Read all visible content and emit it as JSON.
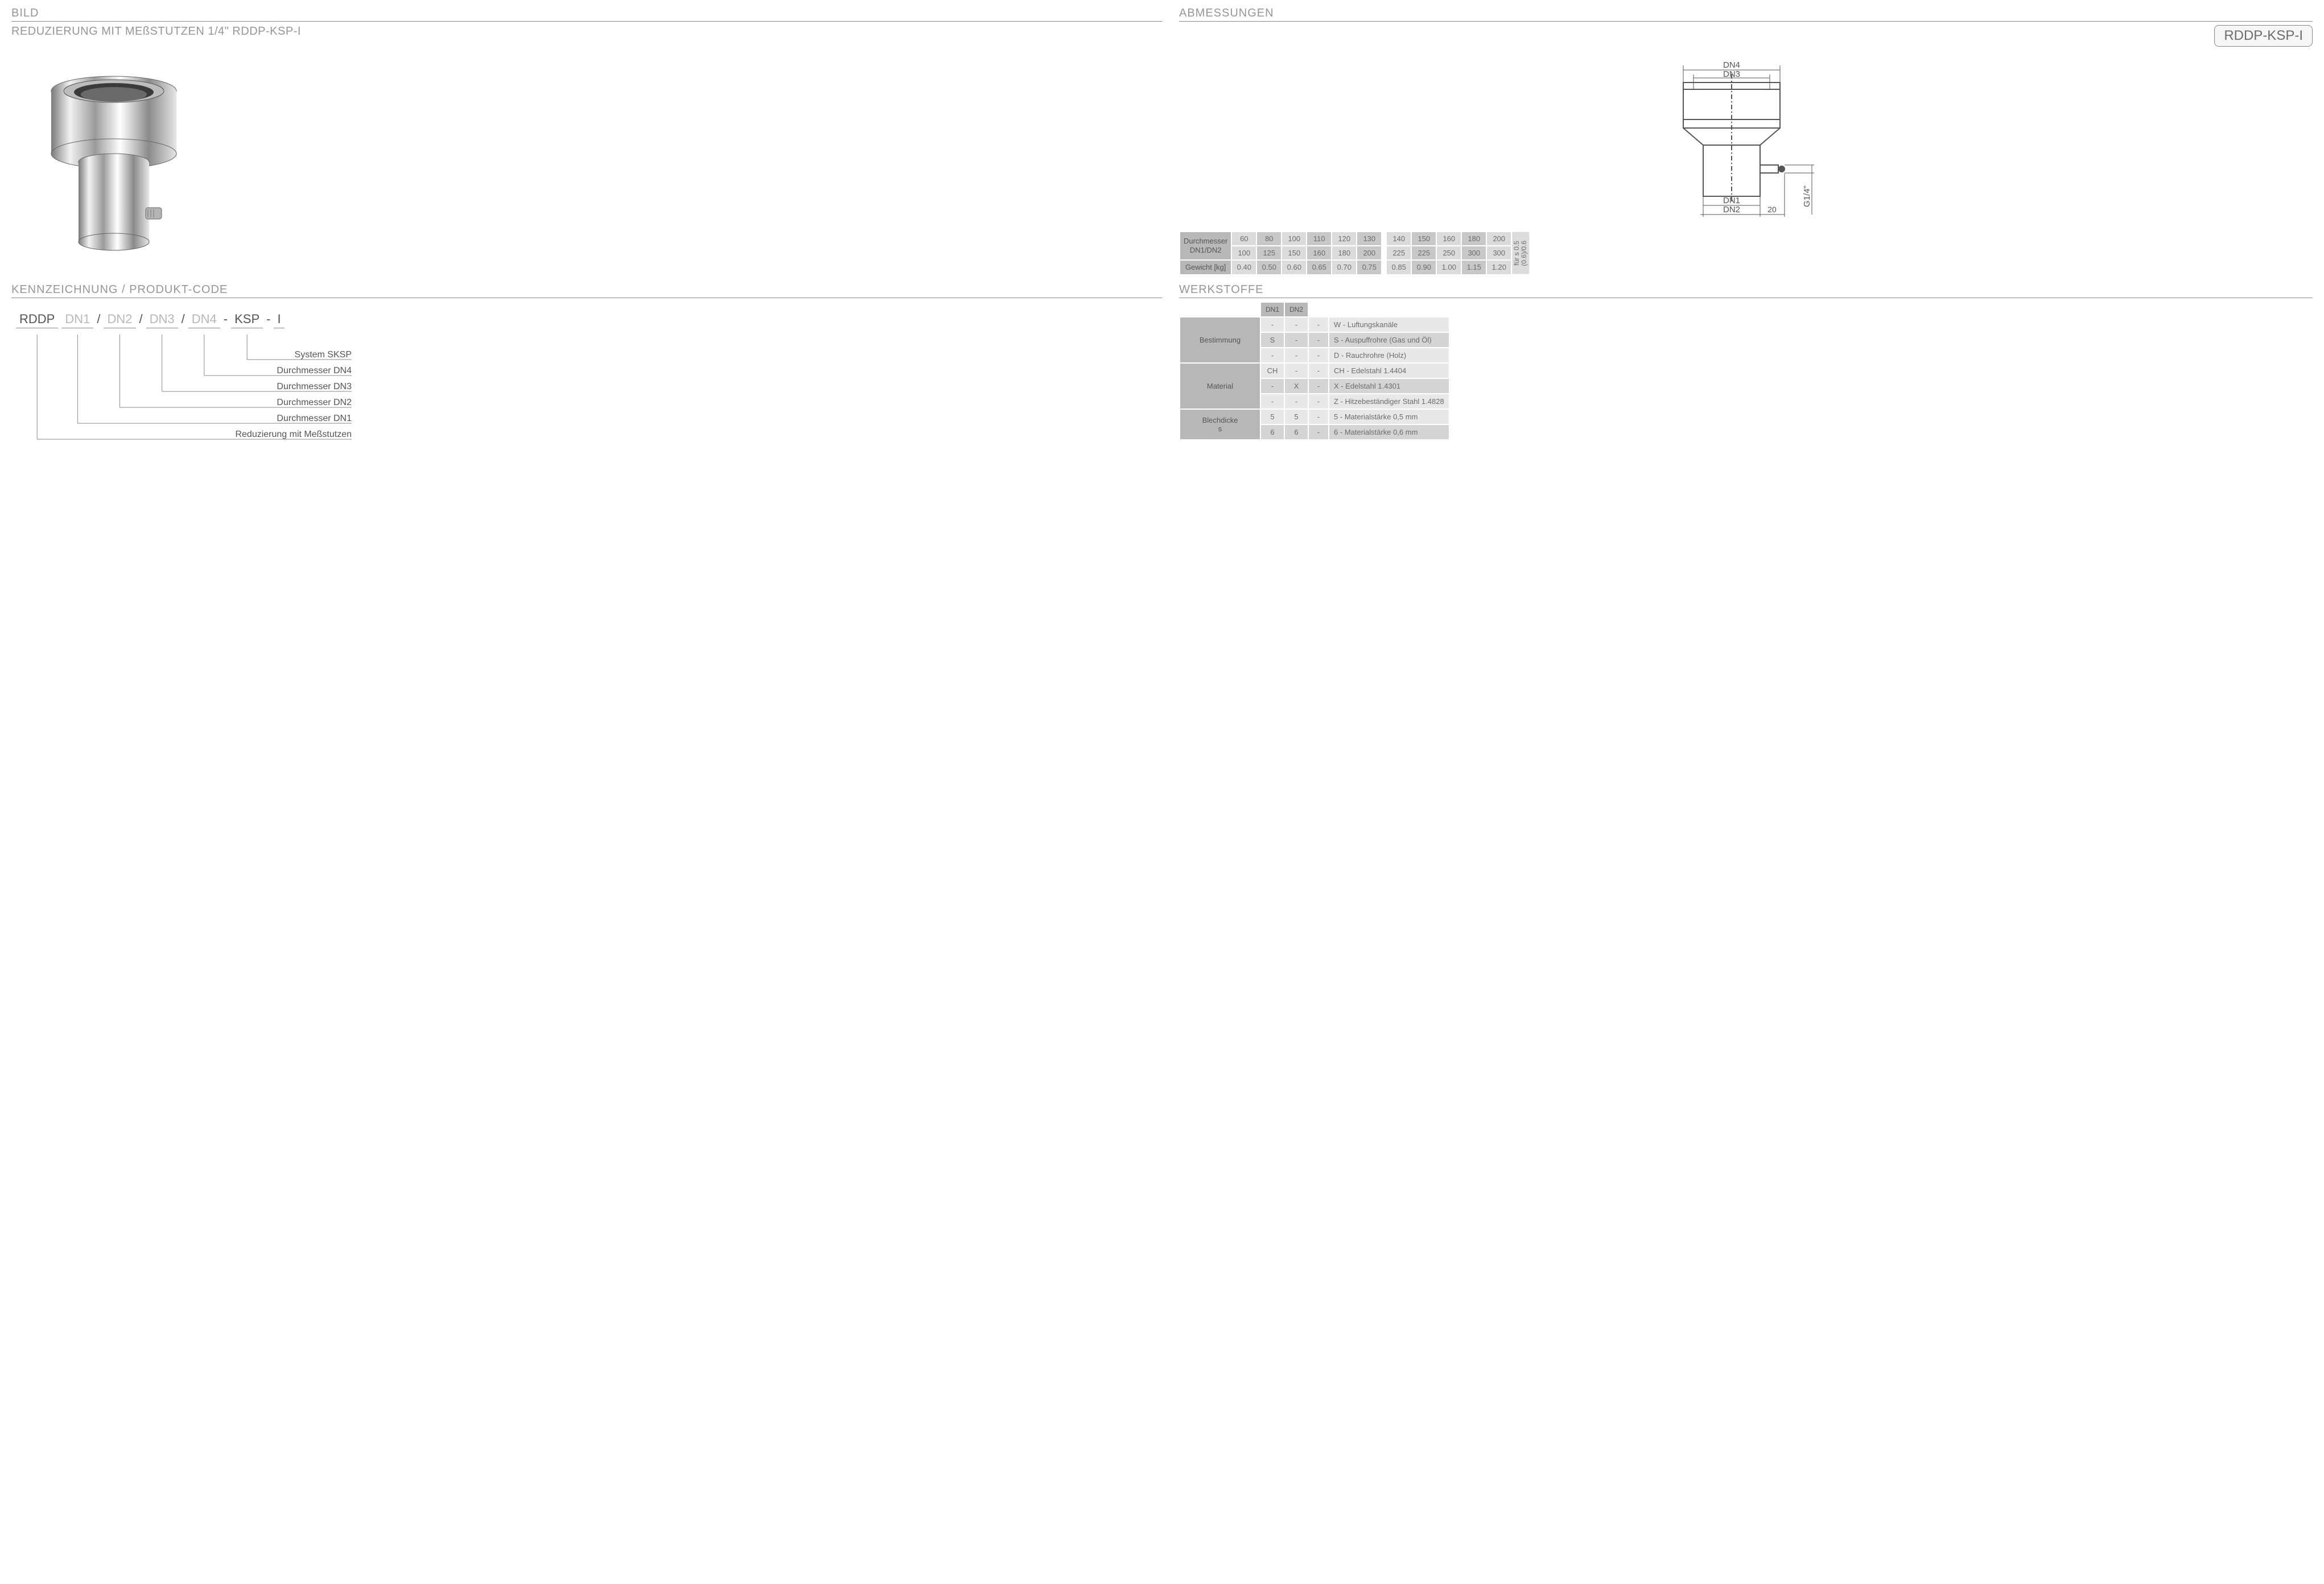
{
  "headers": {
    "bild": "BILD",
    "abmessungen": "ABMESSUNGEN",
    "kennzeichnung": "KENNZEICHNUNG  / PRODUKT-CODE",
    "werkstoffe": "WERKSTOFFE"
  },
  "product": {
    "title": "REDUZIERUNG MIT MEßSTUTZEN 1/4\" RDDP-KSP-I",
    "code_badge": "RDDP-KSP-I"
  },
  "drawing_labels": {
    "dn1": "DN1",
    "dn2": "DN2",
    "dn3": "DN3",
    "dn4": "DN4",
    "twenty": "20",
    "g14": "G1/4\""
  },
  "dim_table": {
    "row1_label": "Durchmesser\nDN1/DN2",
    "row2_label": "Gewicht [kg]",
    "side_label": "für s 0.5\n(0.6)/0.6",
    "group1_top": [
      "60",
      "80",
      "100",
      "110",
      "120",
      "130"
    ],
    "group1_bot": [
      "100",
      "125",
      "150",
      "160",
      "180",
      "200"
    ],
    "group1_w": [
      "0.40",
      "0.50",
      "0.60",
      "0.65",
      "0.70",
      "0.75"
    ],
    "group2_top": [
      "140",
      "150",
      "160",
      "180",
      "200"
    ],
    "group2_bot": [
      "225",
      "225",
      "250",
      "300",
      "300"
    ],
    "group2_w": [
      "0.85",
      "0.90",
      "1.00",
      "1.15",
      "1.20"
    ],
    "shade_g1": [
      "a",
      "b",
      "a",
      "b",
      "a",
      "b"
    ],
    "shade_g2": [
      "a",
      "b",
      "a",
      "b",
      "a"
    ]
  },
  "code_diagram": {
    "segments": [
      {
        "text": "RDDP",
        "ph": false
      },
      {
        "text": "DN1",
        "ph": true
      },
      {
        "text": "/",
        "sep": true
      },
      {
        "text": "DN2",
        "ph": true
      },
      {
        "text": "/",
        "sep": true
      },
      {
        "text": "DN3",
        "ph": true
      },
      {
        "text": "/",
        "sep": true
      },
      {
        "text": "DN4",
        "ph": true
      },
      {
        "text": "-",
        "sep": true
      },
      {
        "text": "KSP",
        "ph": false
      },
      {
        "text": "-",
        "sep": true
      },
      {
        "text": "I",
        "ph": false
      }
    ],
    "labels": [
      "System SKSP",
      "Durchmesser DN4",
      "Durchmesser DN3",
      "Durchmesser DN2",
      "Durchmesser DN1",
      "Reduzierung mit Meßstutzen"
    ]
  },
  "materials": {
    "colhdr": [
      "DN1",
      "DN2"
    ],
    "rows": [
      {
        "hdr": "Bestimmung",
        "span": 3,
        "cells": [
          {
            "c": [
              "-",
              "-",
              "-"
            ],
            "desc": "W - Luftungskanäle",
            "alt": false
          },
          {
            "c": [
              "S",
              "-",
              "-"
            ],
            "desc": "S  - Auspuffrohre (Gas und Öl)",
            "alt": true
          },
          {
            "c": [
              "-",
              "-",
              "-"
            ],
            "desc": "D  - Rauchrohre (Holz)",
            "alt": false
          }
        ]
      },
      {
        "hdr": "Material",
        "span": 3,
        "cells": [
          {
            "c": [
              "CH",
              "-",
              "-"
            ],
            "desc": "CH - Edelstahl  1.4404",
            "alt": false
          },
          {
            "c": [
              "-",
              "X",
              "-"
            ],
            "desc": "X   - Edelstahl  1.4301",
            "alt": true
          },
          {
            "c": [
              "-",
              "-",
              "-"
            ],
            "desc": "Z   - Hitzebeständiger Stahl 1.4828",
            "alt": false
          }
        ]
      },
      {
        "hdr": "Blechdicke\ns",
        "span": 2,
        "cells": [
          {
            "c": [
              "5",
              "5",
              "-"
            ],
            "desc": "5 - Materialstärke 0,5 mm",
            "alt": false
          },
          {
            "c": [
              "6",
              "6",
              "-"
            ],
            "desc": "6 - Materialstärke 0,6 mm",
            "alt": true
          }
        ]
      }
    ]
  },
  "colors": {
    "header_text": "#969696",
    "cell_a": "#dcdcdc",
    "cell_b": "#c8c8c8",
    "hdr_bg": "#b8b8b8"
  }
}
